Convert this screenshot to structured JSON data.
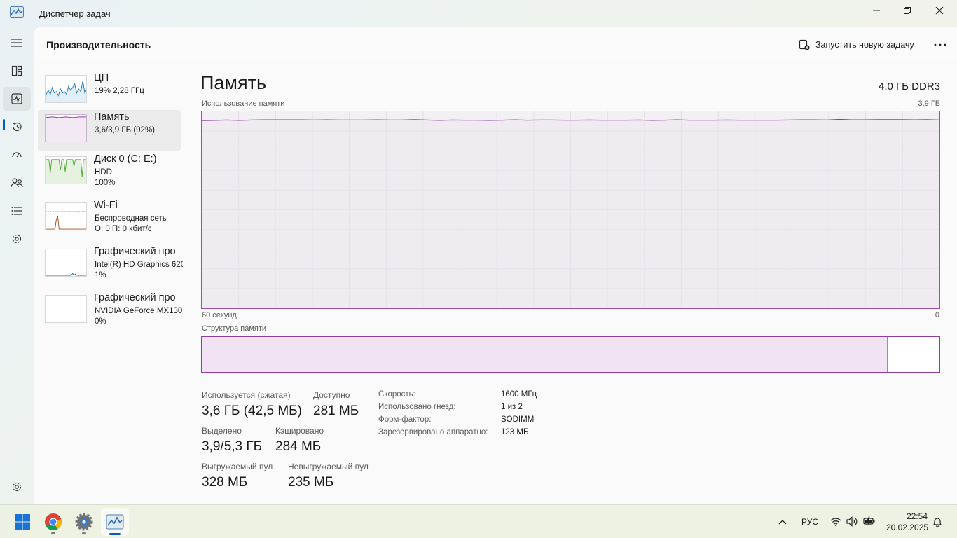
{
  "window": {
    "title": "Диспетчер задач",
    "icon": "task-manager-icon"
  },
  "header": {
    "page_title": "Производительность",
    "run_task_label": "Запустить новую задачу"
  },
  "rail": {
    "items": [
      {
        "icon": "hamburger-menu-icon"
      },
      {
        "icon": "processes-icon"
      },
      {
        "icon": "performance-icon",
        "active": true
      },
      {
        "icon": "app-history-icon"
      },
      {
        "icon": "startup-apps-icon"
      },
      {
        "icon": "users-icon"
      },
      {
        "icon": "details-icon"
      },
      {
        "icon": "services-icon"
      },
      {
        "icon": "settings-icon"
      }
    ]
  },
  "devices": [
    {
      "name": "ЦП",
      "sub1": "19% 2,28 ГГц",
      "sub2": "",
      "color": "#1f7cbd"
    },
    {
      "name": "Память",
      "sub1": "3,6/3,9 ГБ (92%)",
      "sub2": "",
      "color": "#8c3ea0",
      "selected": true
    },
    {
      "name": "Диск 0 (C: E:)",
      "sub1": "HDD",
      "sub2": "100%",
      "color": "#4da934"
    },
    {
      "name": "Wi-Fi",
      "sub1": "Беспроводная сеть",
      "sub2": "О: 0 П: 0 кбит/с",
      "color": "#a1521a"
    },
    {
      "name": "Графический про",
      "sub1": "Intel(R) HD Graphics 620",
      "sub2": "1%",
      "color": "#1f7cbd"
    },
    {
      "name": "Графический про",
      "sub1": "NVIDIA GeForce MX130",
      "sub2": "0%",
      "color": "#1f7cbd"
    }
  ],
  "detail": {
    "title": "Память",
    "spec": "4,0 ГБ DDR3",
    "graph_label": "Использование памяти",
    "graph_max": "3,9 ГБ",
    "axis_left": "60 секунд",
    "axis_right": "0",
    "composition_label": "Структура памяти",
    "composition_used_fraction": 0.93
  },
  "memory_usage_series": [
    0.953,
    0.954,
    0.956,
    0.954,
    0.956,
    0.957,
    0.957,
    0.957,
    0.957,
    0.956,
    0.957,
    0.956,
    0.956,
    0.956,
    0.957,
    0.956,
    0.956,
    0.958,
    0.956,
    0.954,
    0.956,
    0.955,
    0.955,
    0.954,
    0.955,
    0.957,
    0.955,
    0.956,
    0.956,
    0.955,
    0.955,
    0.956,
    0.955,
    0.955,
    0.955,
    0.956,
    0.954,
    0.955,
    0.957,
    0.955,
    0.955,
    0.955,
    0.956,
    0.955,
    0.955,
    0.955,
    0.955,
    0.956,
    0.957,
    0.957,
    0.956,
    0.959,
    0.957,
    0.957,
    0.958,
    0.958,
    0.958,
    0.957,
    0.958,
    0.956
  ],
  "stats": {
    "used_label": "Используется (сжатая)",
    "used_value": "3,6 ГБ (42,5 МБ)",
    "available_label": "Доступно",
    "available_value": "281 МБ",
    "committed_label": "Выделено",
    "committed_value": "3,9/5,3 ГБ",
    "cached_label": "Кэшировано",
    "cached_value": "284 МБ",
    "paged_label": "Выгружаемый пул",
    "paged_value": "328 МБ",
    "nonpaged_label": "Невыгружаемый пул",
    "nonpaged_value": "235 МБ"
  },
  "properties": [
    {
      "key": "Скорость:",
      "value": "1600 МГц"
    },
    {
      "key": "Использовано гнезд:",
      "value": "1 из 2"
    },
    {
      "key": "Форм-фактор:",
      "value": "SODIMM"
    },
    {
      "key": "Зарезервировано аппаратно:",
      "value": "123 МБ"
    }
  ],
  "taskbar": {
    "apps": [
      {
        "icon": "windows-start-icon"
      },
      {
        "icon": "chrome-icon"
      },
      {
        "icon": "settings-gear-app-icon"
      },
      {
        "icon": "task-manager-app-icon",
        "active": true
      }
    ],
    "language": "РУС",
    "time": "22:54",
    "date": "20.02.2025"
  }
}
